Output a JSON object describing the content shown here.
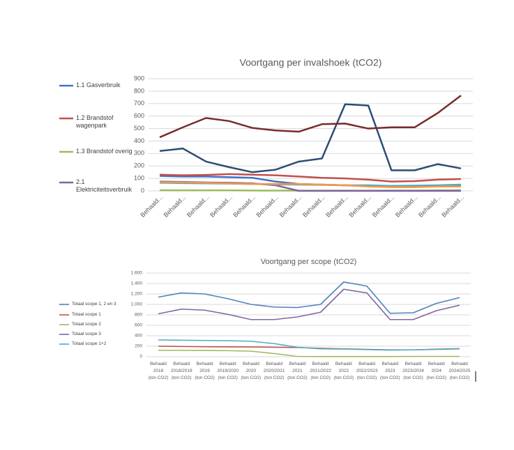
{
  "chart_data": [
    {
      "type": "line",
      "title": "Voortgang per invalshoek (tCO2)",
      "categories": [
        "Behaald...",
        "Behaald...",
        "Behaald...",
        "Behaald...",
        "Behaald...",
        "Behaald...",
        "Behaald...",
        "Behaald...",
        "Behaald...",
        "Behaald...",
        "Behaald...",
        "Behaald...",
        "Behaald...",
        "Behaald..."
      ],
      "ylim": [
        0,
        900
      ],
      "yticks": [
        0,
        100,
        200,
        300,
        400,
        500,
        600,
        700,
        800,
        900
      ],
      "grid": true,
      "series": [
        {
          "name": "1.1 Gasverbruik",
          "color": "#4472c4",
          "values": [
            120,
            115,
            115,
            110,
            105,
            75,
            55,
            50,
            45,
            40,
            35,
            35,
            40,
            45
          ]
        },
        {
          "name": "1.2 Brandstof wagenpark",
          "color": "#c0504d",
          "values": [
            130,
            125,
            128,
            135,
            130,
            125,
            115,
            105,
            100,
            90,
            75,
            78,
            90,
            95
          ]
        },
        {
          "name": "1.3 Brandstof overig",
          "color": "#9bbb59",
          "values": [
            5,
            4,
            4,
            4,
            3,
            2,
            2,
            2,
            2,
            2,
            3,
            3,
            4,
            5
          ]
        },
        {
          "name": "2.1 Elektriciteitsverbruik",
          "color": "#8064a2",
          "values": [
            75,
            72,
            68,
            65,
            60,
            45,
            0,
            0,
            0,
            0,
            0,
            0,
            0,
            0
          ]
        },
        {
          "color": "#4bacc6",
          "values": [
            65,
            62,
            60,
            58,
            55,
            52,
            50,
            48,
            45,
            45,
            40,
            42,
            45,
            50
          ]
        },
        {
          "color": "#f79646",
          "values": [
            70,
            68,
            65,
            60,
            55,
            55,
            55,
            50,
            45,
            35,
            30,
            30,
            35,
            35
          ]
        },
        {
          "color": "#2c4d75",
          "values": [
            320,
            340,
            235,
            190,
            150,
            170,
            235,
            260,
            695,
            685,
            165,
            165,
            215,
            180
          ]
        },
        {
          "color": "#772c2a",
          "values": [
            430,
            510,
            585,
            560,
            505,
            485,
            475,
            535,
            540,
            500,
            510,
            510,
            625,
            765
          ]
        }
      ]
    },
    {
      "type": "line",
      "title": "Voortgang per scope (tCO2)",
      "categories": [
        [
          "Behaald",
          "2018",
          "(ton CO2)"
        ],
        [
          "Behaald",
          "2018/2019",
          "(ton CO2)"
        ],
        [
          "Behaald",
          "2019",
          "(ton CO2)"
        ],
        [
          "Behaald",
          "2019/2020",
          "(ton CO2)"
        ],
        [
          "Behaald",
          "2020",
          "(ton CO2)"
        ],
        [
          "Behaald",
          "2020/2021",
          "(ton CO2)"
        ],
        [
          "Behaald",
          "2021",
          "(ton CO2)"
        ],
        [
          "Behaald",
          "2021/2022",
          "(ton CO2)"
        ],
        [
          "Behaald",
          "2022",
          "(ton CO2)"
        ],
        [
          "Behaald",
          "2022/2023",
          "(ton CO2)"
        ],
        [
          "Behaald",
          "2023",
          "(ton CO2)"
        ],
        [
          "Behaald",
          "2023/2024",
          "(ton CO2)"
        ],
        [
          "Behaald",
          "2024",
          "(ton CO2)"
        ],
        [
          "Behaald",
          "2024/2025",
          "(ton CO2)"
        ]
      ],
      "ylim": [
        0,
        1600
      ],
      "yticks": [
        0,
        200,
        400,
        600,
        800,
        {
          "value": 1000,
          "label": "1.000"
        },
        {
          "value": 1200,
          "label": "1.200"
        },
        {
          "value": 1400,
          "label": "1.400"
        },
        {
          "value": 1600,
          "label": "1.600"
        }
      ],
      "grid": true,
      "series": [
        {
          "name": "Totaal scope 1, 2 en 3",
          "color": "#4f81bd",
          "values": [
            1140,
            1220,
            1200,
            1110,
            1000,
            950,
            940,
            1000,
            1430,
            1350,
            830,
            840,
            1020,
            1130
          ]
        },
        {
          "name": "Totaal scope 1",
          "color": "#c0504d",
          "values": [
            200,
            195,
            190,
            188,
            185,
            180,
            175,
            160,
            150,
            140,
            130,
            130,
            140,
            150
          ]
        },
        {
          "name": "Totaal scope 2",
          "color": "#9bbb59",
          "values": [
            120,
            120,
            118,
            115,
            105,
            60,
            5,
            3,
            3,
            3,
            3,
            5,
            5,
            5
          ]
        },
        {
          "name": "Totaal scope 3",
          "color": "#8064a2",
          "values": [
            820,
            910,
            890,
            810,
            710,
            710,
            760,
            850,
            1290,
            1220,
            710,
            710,
            880,
            985
          ]
        },
        {
          "name": "Totaal scope 1+2",
          "color": "#4bacc6",
          "values": [
            320,
            315,
            310,
            305,
            295,
            250,
            180,
            150,
            145,
            135,
            125,
            130,
            145,
            155
          ]
        }
      ]
    }
  ]
}
